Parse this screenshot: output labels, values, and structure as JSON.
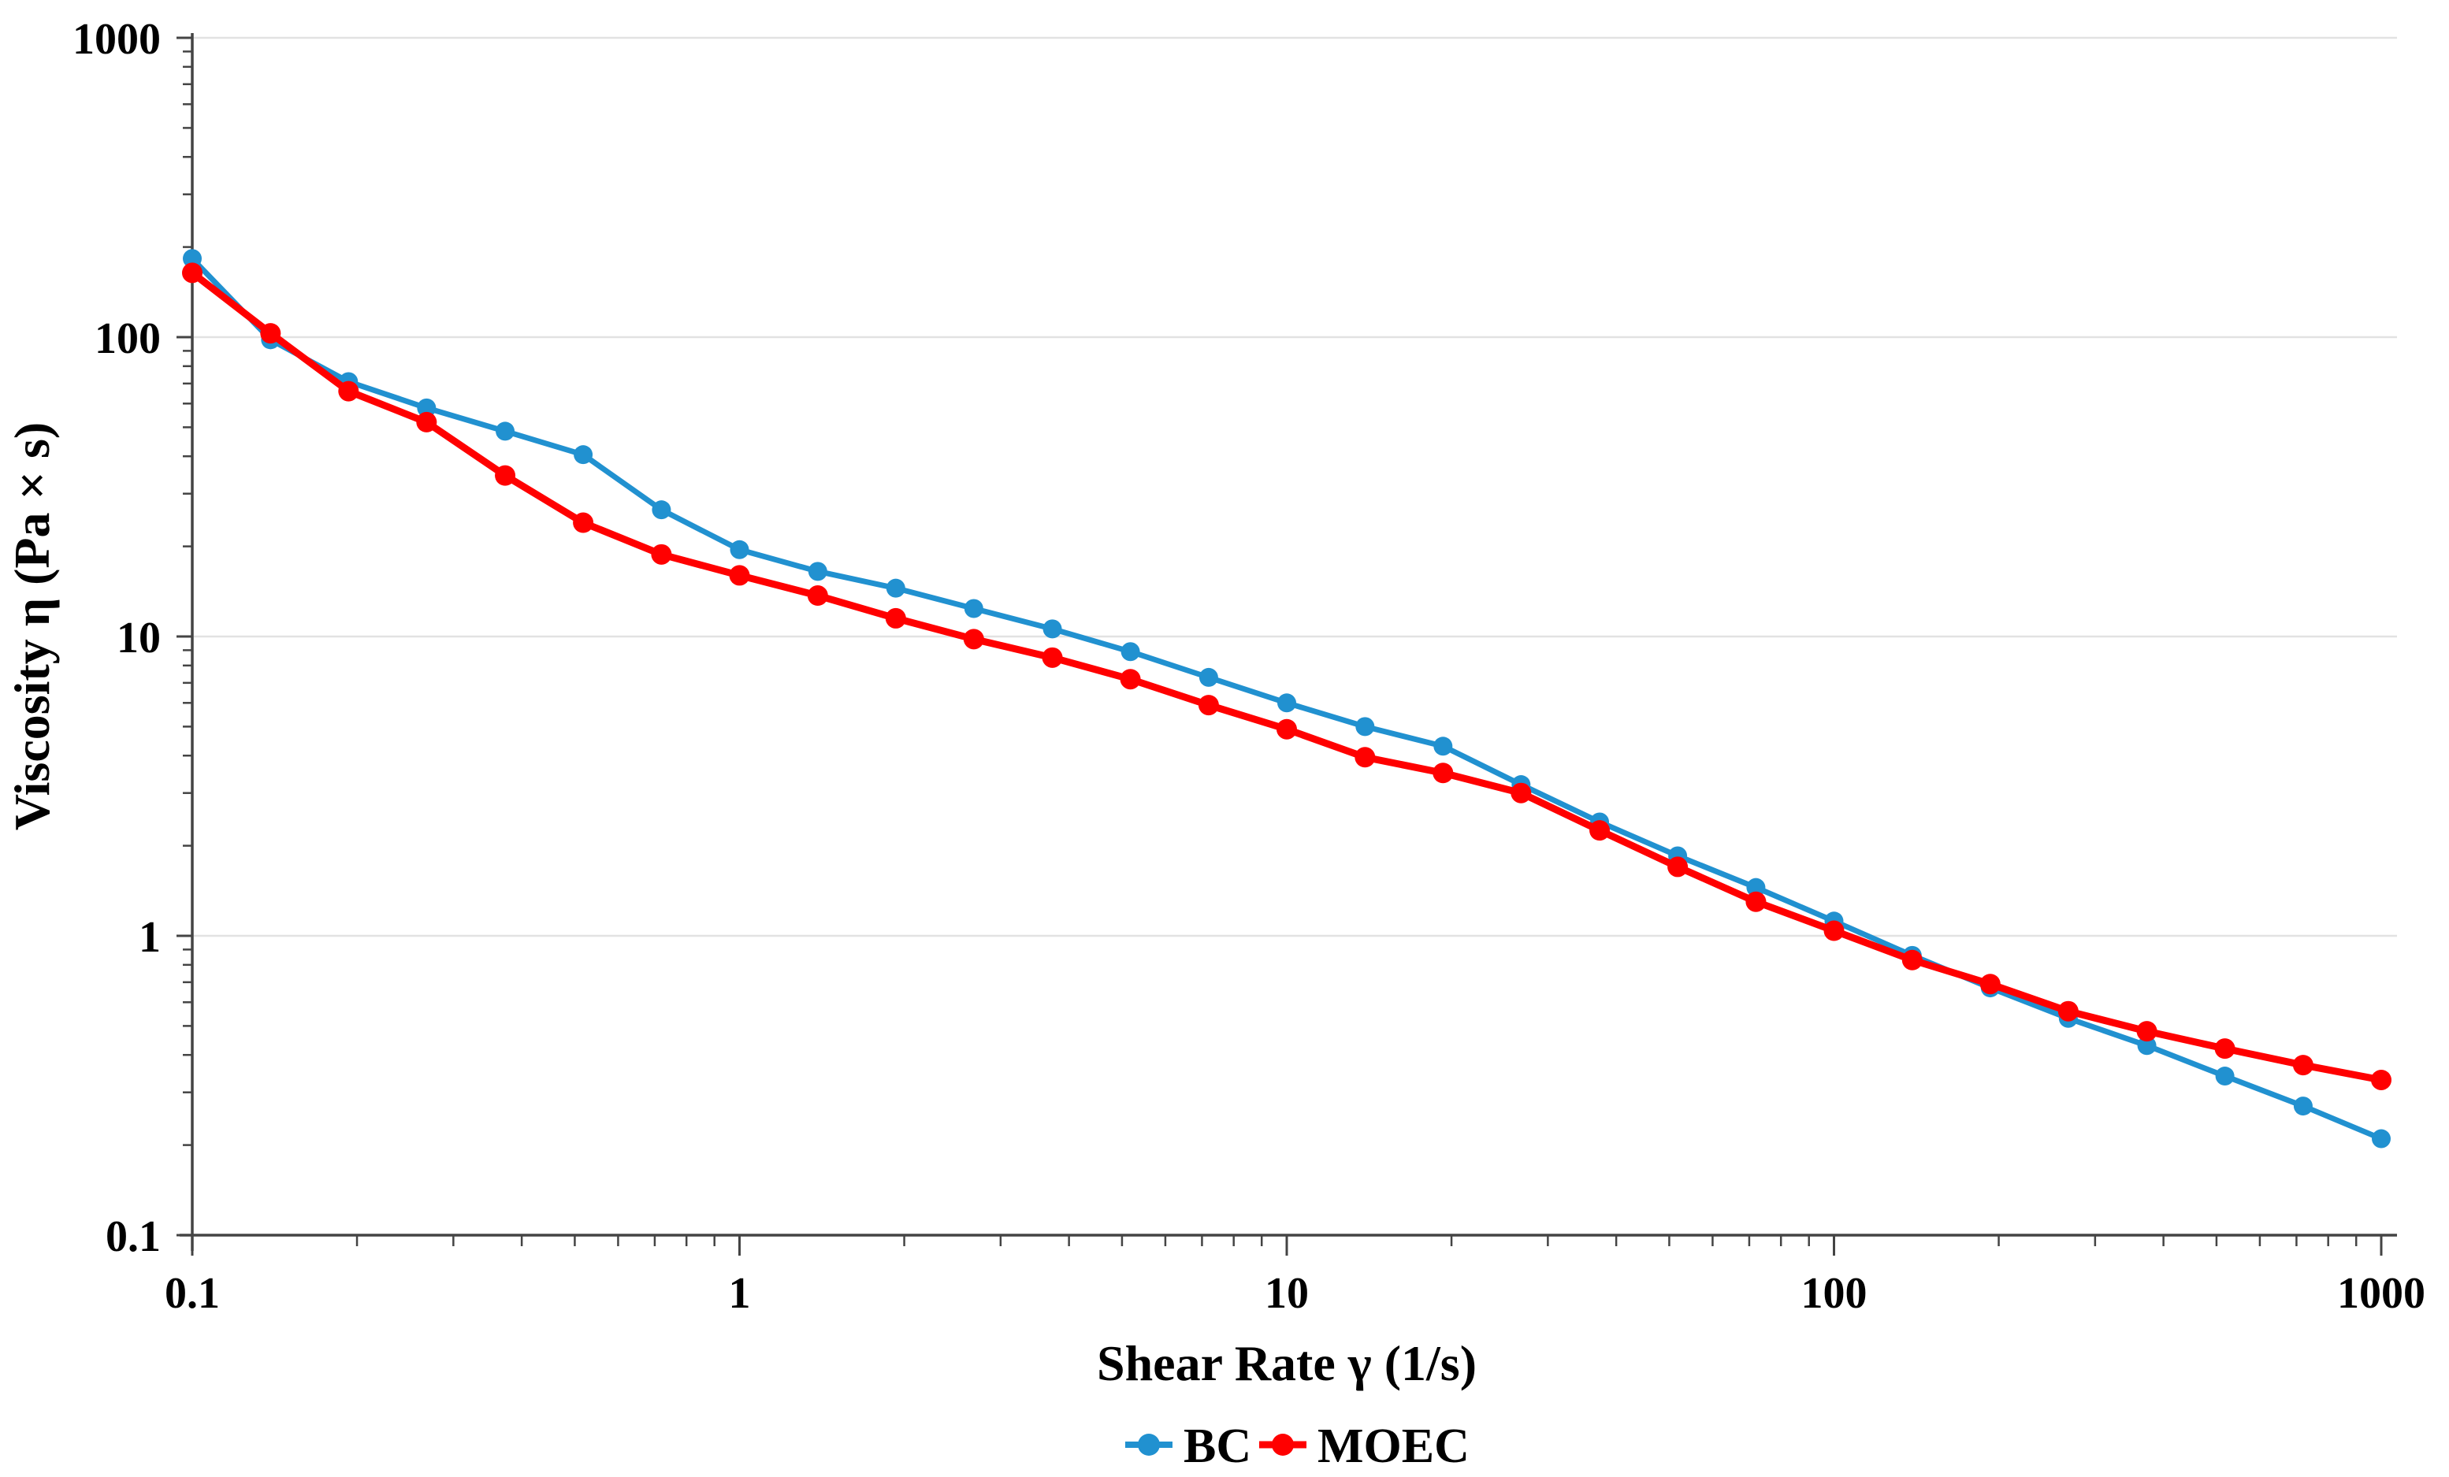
{
  "chart_data": {
    "type": "line",
    "title": "",
    "xlabel": "Shear Rate γ (1/s)",
    "ylabel": "Viscosity η (Pa × s)",
    "x_scale": "log",
    "y_scale": "log",
    "xlim": [
      0.1,
      1000
    ],
    "ylim": [
      0.1,
      1000
    ],
    "grid": "horizontal major gridlines only",
    "legend_position": "bottom-center",
    "x_ticks": [
      {
        "v": 0.1,
        "label": "0.1"
      },
      {
        "v": 1,
        "label": "1"
      },
      {
        "v": 10,
        "label": "10"
      },
      {
        "v": 100,
        "label": "100"
      },
      {
        "v": 1000,
        "label": "1000"
      }
    ],
    "y_ticks": [
      {
        "v": 1000,
        "label": "1000"
      },
      {
        "v": 100,
        "label": "100"
      },
      {
        "v": 10,
        "label": "10"
      },
      {
        "v": 1,
        "label": "1"
      },
      {
        "v": 0.1,
        "label": "0.1"
      }
    ],
    "x": [
      0.1,
      0.139,
      0.193,
      0.268,
      0.373,
      0.518,
      0.72,
      1,
      1.39,
      1.93,
      2.68,
      3.73,
      5.18,
      7.2,
      10,
      13.9,
      19.3,
      26.8,
      37.3,
      51.8,
      72,
      100,
      139,
      193,
      268,
      373,
      518,
      720,
      1000
    ],
    "series": [
      {
        "name": "BC",
        "color": "#2191D0",
        "marker": "circle",
        "values": [
          183,
          98,
          71,
          58,
          48.5,
          40.5,
          26.5,
          19.5,
          16.5,
          14.5,
          12.4,
          10.6,
          8.9,
          7.3,
          6.0,
          5.0,
          4.3,
          3.2,
          2.4,
          1.85,
          1.45,
          1.12,
          0.86,
          0.67,
          0.53,
          0.43,
          0.34,
          0.27,
          0.21
        ]
      },
      {
        "name": "MOEC",
        "color": "#FF0000",
        "marker": "circle",
        "values": [
          164,
          103,
          66,
          52,
          34.5,
          24,
          18.8,
          16,
          13.7,
          11.5,
          9.8,
          8.5,
          7.2,
          5.9,
          4.9,
          3.95,
          3.5,
          3.0,
          2.25,
          1.7,
          1.3,
          1.04,
          0.83,
          0.69,
          0.56,
          0.48,
          0.42,
          0.37,
          0.33
        ]
      }
    ]
  },
  "colors": {
    "background": "#FFFFFF",
    "grid": "#E2E2E2",
    "axis": "#444444",
    "text": "#000000"
  }
}
